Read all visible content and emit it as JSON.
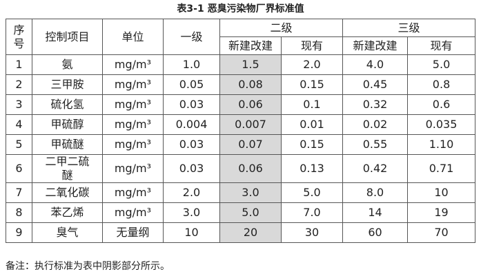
{
  "title": "表3-1 恶臭污染物厂界标准值",
  "header": {
    "seq": "序号",
    "item": "控制项目",
    "unit": "单位",
    "level1": "一级",
    "level2": "二级",
    "level3": "三级",
    "level2_sub": [
      "新建改建",
      "现有"
    ],
    "level3_sub": [
      "新建改建",
      "现有"
    ]
  },
  "table": {
    "rows": [
      [
        "1",
        "氨",
        "mg/m³",
        "1.0",
        "1.5",
        "2.0",
        "4.0",
        "5.0"
      ],
      [
        "2",
        "三甲胺",
        "mg/m³",
        "0.05",
        "0.08",
        "0.15",
        "0.45",
        "0.8"
      ],
      [
        "3",
        "硫化氢",
        "mg/m³",
        "0.03",
        "0.06",
        "0.1",
        "0.32",
        "0.6"
      ],
      [
        "4",
        "甲硫醇",
        "mg/m³",
        "0.004",
        "0.007",
        "0.01",
        "0.02",
        "0.035"
      ],
      [
        "5",
        "甲硫醚",
        "mg/m³",
        "0.03",
        "0.07",
        "0.15",
        "0.55",
        "1.10"
      ],
      [
        "6",
        "二甲二硫醚",
        "mg/m³",
        "0.03",
        "0.06",
        "0.13",
        "0.42",
        "0.71"
      ],
      [
        "7",
        "二氧化碳",
        "mg/m³",
        "2.0",
        "3.0",
        "5.0",
        "8.0",
        "10"
      ],
      [
        "8",
        "苯乙烯",
        "mg/m³",
        "3.0",
        "5.0",
        "7.0",
        "14",
        "19"
      ],
      [
        "9",
        "臭气",
        "无量纲",
        "10",
        "20",
        "30",
        "60",
        "70"
      ]
    ]
  },
  "note": "备注：执行标准为表中阴影部分所示。"
}
